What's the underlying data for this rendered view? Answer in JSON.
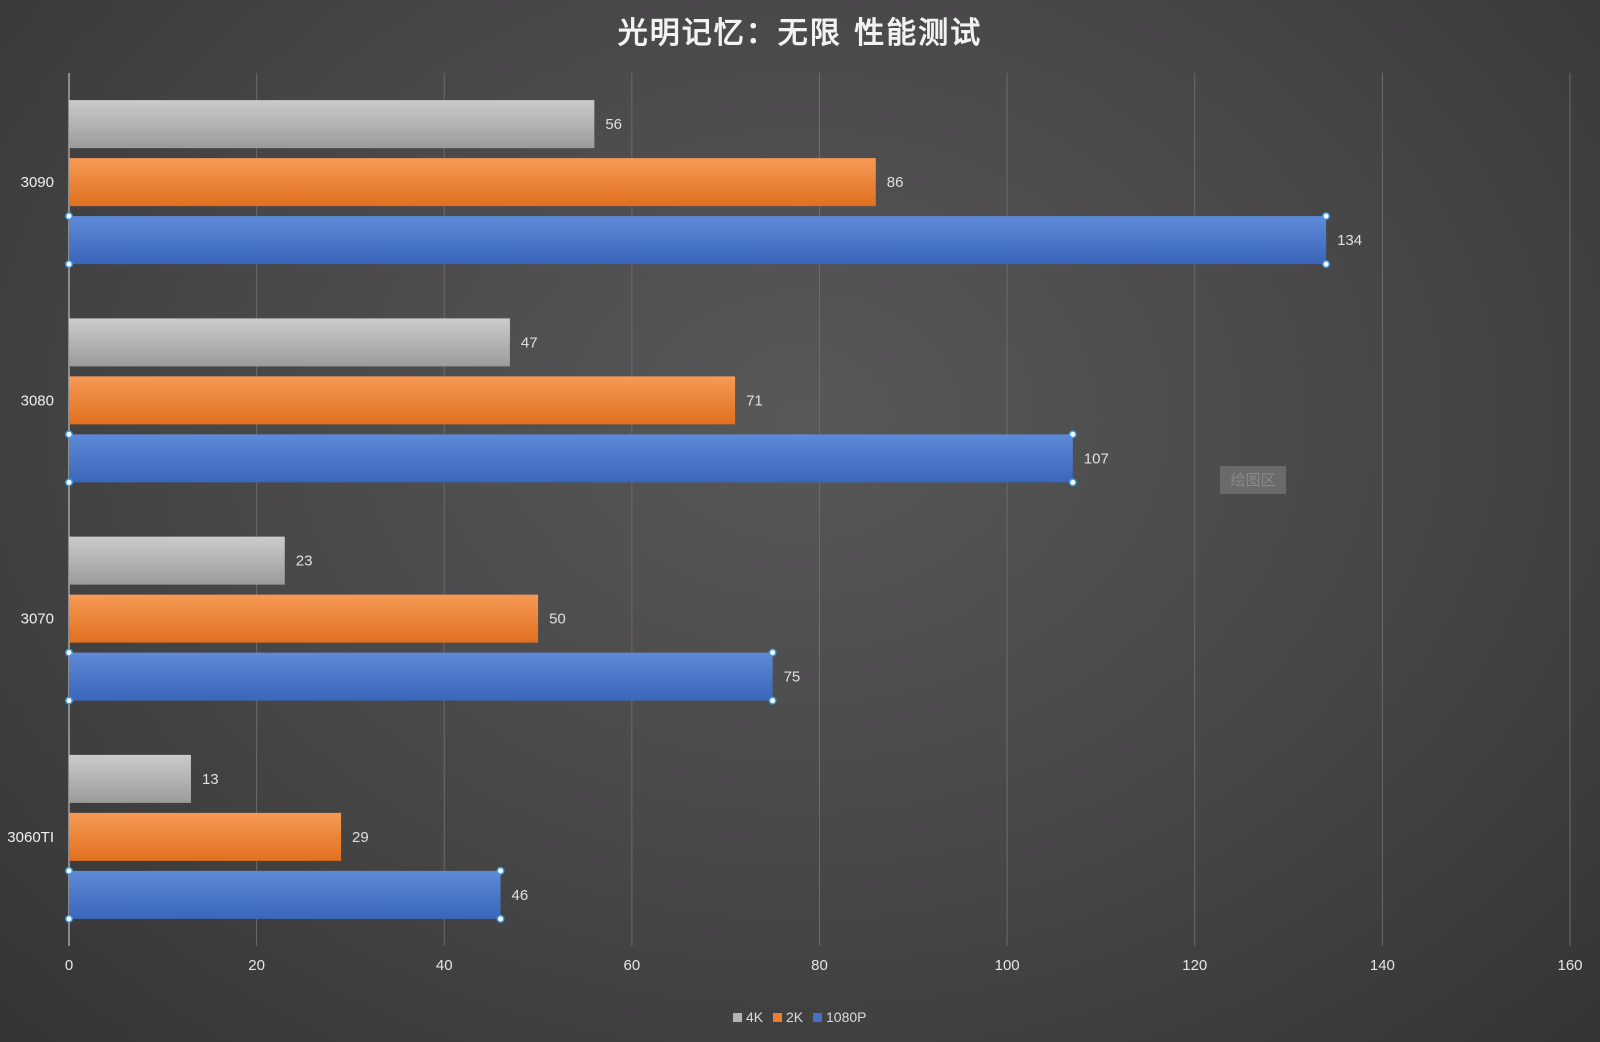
{
  "chart_data": {
    "type": "bar",
    "orientation": "horizontal",
    "title": "光明记忆：无限 性能测试",
    "categories": [
      "3090",
      "3080",
      "3070",
      "3060TI"
    ],
    "series": [
      {
        "name": "4K",
        "color": "#b3b3b3",
        "values": [
          56,
          47,
          23,
          13
        ]
      },
      {
        "name": "2K",
        "color": "#ed7d31",
        "values": [
          86,
          71,
          50,
          29
        ]
      },
      {
        "name": "1080P",
        "color": "#4472c4",
        "values": [
          134,
          107,
          75,
          46
        ]
      }
    ],
    "xlim": [
      0,
      160
    ],
    "xticks": [
      0,
      20,
      40,
      60,
      80,
      100,
      120,
      140,
      160
    ],
    "grid": true,
    "legend_position": "bottom",
    "plot_area_tag": "绘图区"
  }
}
